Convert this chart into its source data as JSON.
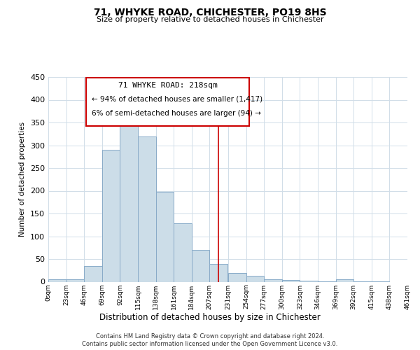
{
  "title": "71, WHYKE ROAD, CHICHESTER, PO19 8HS",
  "subtitle": "Size of property relative to detached houses in Chichester",
  "xlabel": "Distribution of detached houses by size in Chichester",
  "ylabel": "Number of detached properties",
  "bar_color": "#ccdde8",
  "bar_edge_color": "#88aac8",
  "grid_color": "#d0dde8",
  "annotation_border_color": "#cc0000",
  "property_line_color": "#cc0000",
  "property_value": 218,
  "annotation_title": "71 WHYKE ROAD: 218sqm",
  "annotation_line1": "← 94% of detached houses are smaller (1,417)",
  "annotation_line2": "6% of semi-detached houses are larger (94) →",
  "footer_line1": "Contains HM Land Registry data © Crown copyright and database right 2024.",
  "footer_line2": "Contains public sector information licensed under the Open Government Licence v3.0.",
  "bin_edges": [
    0,
    23,
    46,
    69,
    92,
    115,
    138,
    161,
    184,
    207,
    231,
    254,
    277,
    300,
    323,
    346,
    369,
    392,
    415,
    438,
    461
  ],
  "bin_counts": [
    5,
    5,
    35,
    290,
    365,
    320,
    197,
    128,
    70,
    40,
    20,
    13,
    5,
    4,
    2,
    1,
    5,
    1,
    1,
    0
  ],
  "xlim": [
    0,
    461
  ],
  "ylim": [
    0,
    450
  ],
  "yticks": [
    0,
    50,
    100,
    150,
    200,
    250,
    300,
    350,
    400,
    450
  ],
  "xtick_labels": [
    "0sqm",
    "23sqm",
    "46sqm",
    "69sqm",
    "92sqm",
    "115sqm",
    "138sqm",
    "161sqm",
    "184sqm",
    "207sqm",
    "231sqm",
    "254sqm",
    "277sqm",
    "300sqm",
    "323sqm",
    "346sqm",
    "369sqm",
    "392sqm",
    "415sqm",
    "438sqm",
    "461sqm"
  ]
}
